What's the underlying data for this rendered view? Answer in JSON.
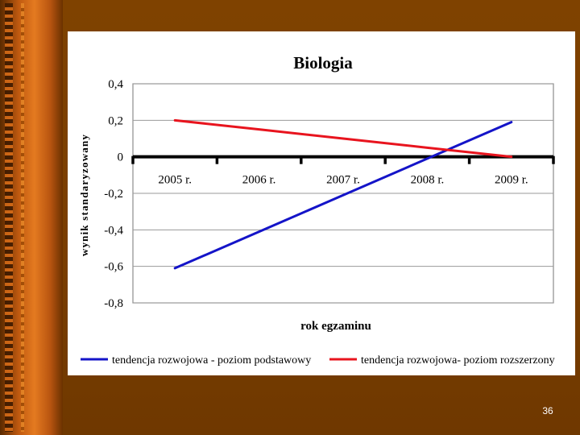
{
  "slide": {
    "number": "36"
  },
  "colors": {
    "background": "#7a3f00",
    "accent_bar": "#e47a20",
    "panel": "#ffffff"
  },
  "chart_data": {
    "type": "line",
    "title": "Biologia",
    "xlabel": "rok egzaminu",
    "ylabel": "wynik standaryzowany",
    "categories": [
      "2005 r.",
      "2006 r.",
      "2007 r.",
      "2008 r.",
      "2009 r."
    ],
    "ylim": [
      -0.8,
      0.4
    ],
    "yticks": [
      0.4,
      0.2,
      0,
      -0.2,
      -0.4,
      -0.6,
      -0.8
    ],
    "ytick_labels": [
      "0,4",
      "0,2",
      "0",
      "-0,2",
      "-0,4",
      "-0,6",
      "-0,8"
    ],
    "grid": true,
    "legend_position": "bottom",
    "series": [
      {
        "name": "tendencja rozwojowa - poziom podstawowy",
        "color": "#1414c8",
        "values": [
          -0.61,
          -0.41,
          -0.21,
          -0.01,
          0.19
        ]
      },
      {
        "name": "tendencja rozwojowa- poziom rozszerzony",
        "color": "#e8141e",
        "values": [
          0.2,
          0.15,
          0.1,
          0.05,
          0.0
        ]
      }
    ]
  }
}
